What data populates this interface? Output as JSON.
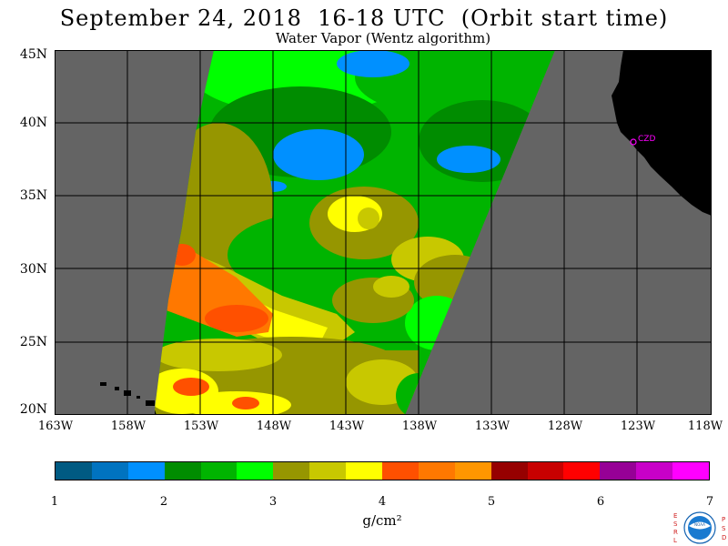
{
  "map": {
    "title": "September 24, 2018  16-18 UTC  (Orbit start time)",
    "subtitle": "Water Vapor (Wentz algorithm)",
    "lat_labels": [
      "45N",
      "40N",
      "35N",
      "30N",
      "25N",
      "20N"
    ],
    "lon_labels": [
      "163W",
      "158W",
      "153W",
      "148W",
      "143W",
      "138W",
      "133W",
      "128W",
      "123W",
      "118W"
    ],
    "station_label": "CZD",
    "colors": {
      "land": "#000000",
      "no_data": "#646464",
      "background": "#ffffff",
      "station": "#ff00ff"
    }
  },
  "colorbar": {
    "unit": "g/cm²",
    "tick_labels": [
      "1",
      "2",
      "3",
      "4",
      "5",
      "6",
      "7"
    ],
    "colors": [
      "#005a82",
      "#0073c0",
      "#0090ff",
      "#008c00",
      "#00b400",
      "#00ff00",
      "#969600",
      "#c8c800",
      "#ffff00",
      "#ff5000",
      "#ff7800",
      "#ff9600",
      "#960000",
      "#c80000",
      "#ff0000",
      "#960096",
      "#c800c8",
      "#ff00ff"
    ]
  },
  "logo": {
    "left_letters": [
      "E",
      "S",
      "R",
      "L"
    ],
    "right_letters": [
      "P",
      "S",
      "D"
    ],
    "badge_text": "NOAA"
  }
}
